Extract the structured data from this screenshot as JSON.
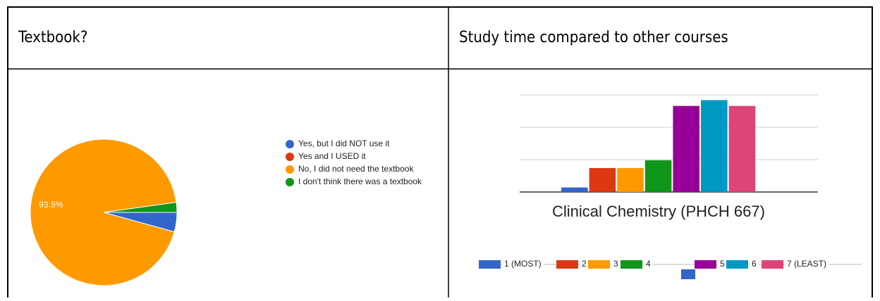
{
  "table": {
    "headers": [
      "Textbook?",
      "Study time compared to other courses"
    ]
  },
  "chart_data": [
    {
      "type": "pie",
      "categories": [
        "Yes, but I did NOT use it",
        "Yes and I USED it",
        "No, I did not need the textbook",
        "I don't think there was a textbook"
      ],
      "values": [
        4.3,
        0,
        93.5,
        2.2
      ],
      "value_labels": [
        null,
        null,
        "93.5%",
        null
      ],
      "colors": [
        "#3366cc",
        "#dc3912",
        "#ff9900",
        "#109618"
      ]
    },
    {
      "type": "bar",
      "categories": [
        "Clinical Chemistry (PHCH 667)"
      ],
      "series": [
        {
          "name": "1 (MOST)",
          "color": "#3366cc",
          "values": [
            0.7
          ]
        },
        {
          "name": "2",
          "color": "#dc3912",
          "values": [
            3.7
          ]
        },
        {
          "name": "3",
          "color": "#ff9900",
          "values": [
            3.7
          ]
        },
        {
          "name": "4",
          "color": "#109618",
          "values": [
            4.9
          ]
        },
        {
          "name": "5",
          "color": "#990099",
          "values": [
            13.3
          ]
        },
        {
          "name": "6",
          "color": "#0099c6",
          "values": [
            14.2
          ]
        },
        {
          "name": "7 (LEAST)",
          "color": "#dd4477",
          "values": [
            13.3
          ]
        }
      ],
      "ylim": [
        0,
        15
      ],
      "yticks": [
        0,
        5,
        10,
        15
      ],
      "grid": true
    }
  ]
}
